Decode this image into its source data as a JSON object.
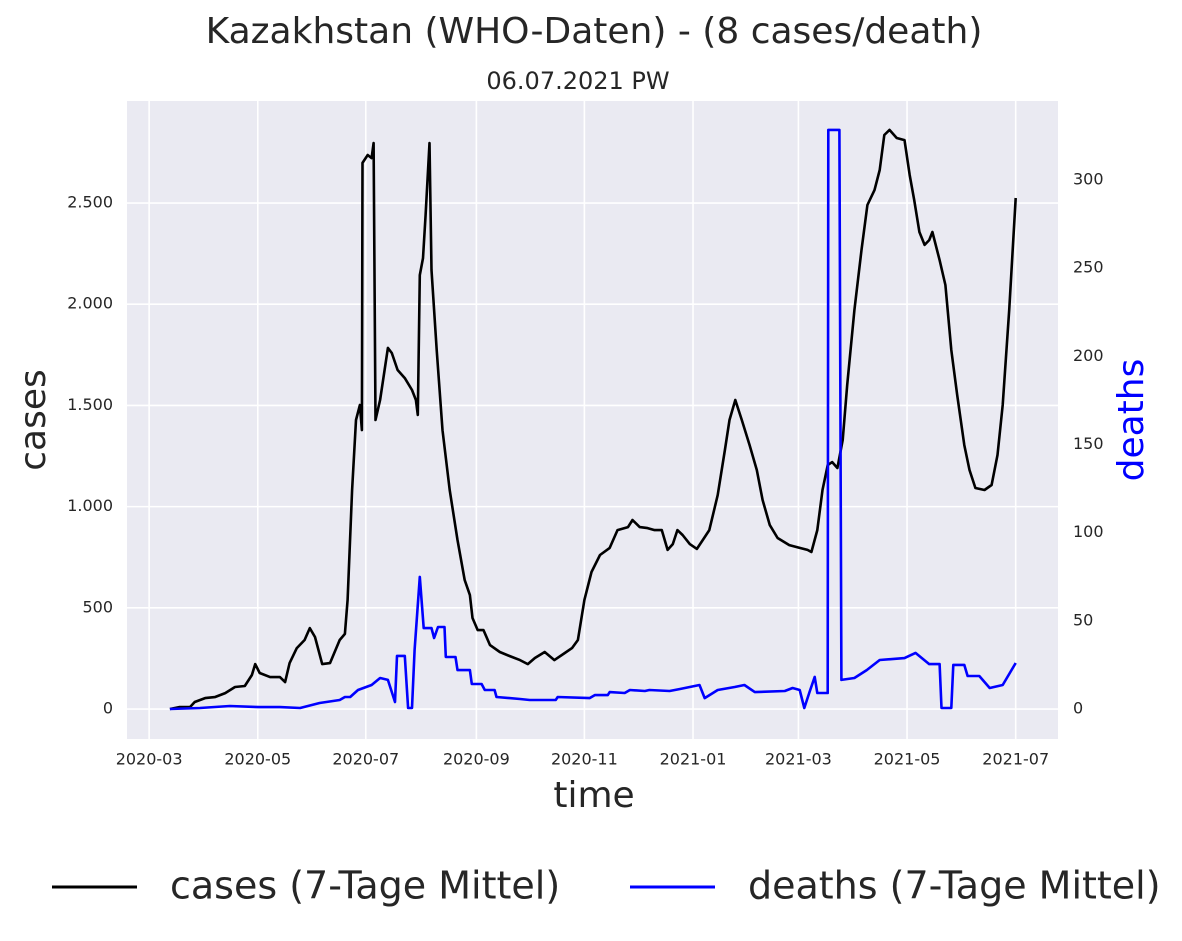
{
  "chart_data": {
    "type": "line",
    "title": "Kazakhstan (WHO-Daten) - (8 cases/death)",
    "subtitle": "06.07.2021 PW",
    "xlabel": "time",
    "ylabel": "cases",
    "y2label": "deaths",
    "xlim": [
      2020.13,
      2021.561
    ],
    "xticks": [
      {
        "value": 2020.164,
        "label": "2020-03"
      },
      {
        "value": 2020.331,
        "label": "2020-05"
      },
      {
        "value": 2020.497,
        "label": "2020-07"
      },
      {
        "value": 2020.667,
        "label": "2020-09"
      },
      {
        "value": 2020.833,
        "label": "2020-11"
      },
      {
        "value": 2021.0,
        "label": "2021-01"
      },
      {
        "value": 2021.162,
        "label": "2021-03"
      },
      {
        "value": 2021.329,
        "label": "2021-05"
      },
      {
        "value": 2021.496,
        "label": "2021-07"
      }
    ],
    "ylim": [
      -148,
      3004
    ],
    "yticks": [
      0,
      500,
      {
        "value": 1000,
        "label": "1.000"
      },
      {
        "value": 1500,
        "label": "1.500"
      },
      {
        "value": 2000,
        "label": "2.000"
      },
      {
        "value": 2500,
        "label": "2.500"
      }
    ],
    "y2lim": [
      -17,
      344.8
    ],
    "y2ticks": [
      0,
      50,
      100,
      150,
      200,
      250,
      300
    ],
    "grid": true,
    "legend": "bottom",
    "series": [
      {
        "name": "cases (7-Tage Mittel)",
        "color": "#000000",
        "x": [
          2020.196,
          2020.211,
          2020.227,
          2020.234,
          2020.25,
          2020.265,
          2020.281,
          2020.296,
          2020.311,
          2020.322,
          2020.327,
          2020.334,
          2020.35,
          2020.365,
          2020.373,
          2020.38,
          2020.391,
          2020.403,
          2020.411,
          2020.419,
          2020.43,
          2020.442,
          2020.457,
          2020.465,
          2020.469,
          2020.476,
          2020.482,
          2020.488,
          2020.491,
          2020.492,
          2020.5,
          2020.506,
          2020.509,
          2020.512,
          2020.519,
          2020.526,
          2020.531,
          2020.537,
          2020.546,
          2020.557,
          2020.568,
          2020.574,
          2020.577,
          2020.58,
          2020.585,
          2020.589,
          2020.595,
          2020.598,
          2020.606,
          2020.615,
          2020.626,
          2020.638,
          2020.649,
          2020.657,
          2020.661,
          2020.669,
          2020.678,
          2020.688,
          2020.703,
          2020.718,
          2020.734,
          2020.746,
          2020.757,
          2020.772,
          2020.787,
          2020.803,
          2020.814,
          2020.823,
          2020.833,
          2020.844,
          2020.857,
          2020.872,
          2020.884,
          2020.9,
          2020.907,
          2020.918,
          2020.93,
          2020.941,
          2020.952,
          2020.961,
          2020.969,
          2020.976,
          2020.984,
          2020.995,
          2021.006,
          2021.015,
          2021.025,
          2021.038,
          2021.049,
          2021.056,
          2021.065,
          2021.075,
          2021.087,
          2021.098,
          2021.107,
          2021.118,
          2021.13,
          2021.148,
          2021.164,
          2021.176,
          2021.182,
          2021.191,
          2021.199,
          2021.207,
          2021.214,
          2021.222,
          2021.23,
          2021.237,
          2021.248,
          2021.259,
          2021.268,
          2021.279,
          2021.287,
          2021.294,
          2021.302,
          2021.313,
          2021.325,
          2021.333,
          2021.34,
          2021.348,
          2021.356,
          2021.363,
          2021.368,
          2021.379,
          2021.388,
          2021.397,
          2021.406,
          2021.417,
          2021.425,
          2021.434,
          2021.448,
          2021.459,
          2021.468,
          2021.476,
          2021.486,
          2021.496
        ],
        "values": [
          0,
          10,
          10,
          35,
          54,
          59,
          79,
          109,
          114,
          168,
          222,
          178,
          158,
          158,
          133,
          227,
          301,
          341,
          400,
          356,
          222,
          227,
          341,
          371,
          539,
          1082,
          1428,
          1502,
          1378,
          2698,
          2737,
          2722,
          2796,
          1428,
          1527,
          1675,
          1784,
          1759,
          1675,
          1635,
          1576,
          1527,
          1453,
          2144,
          2228,
          2441,
          2796,
          2169,
          1774,
          1378,
          1082,
          835,
          637,
          563,
          450,
          390,
          390,
          316,
          282,
          262,
          242,
          222,
          252,
          282,
          242,
          277,
          301,
          341,
          539,
          677,
          761,
          796,
          884,
          899,
          934,
          899,
          894,
          884,
          884,
          786,
          815,
          884,
          860,
          815,
          791,
          835,
          884,
          1057,
          1280,
          1428,
          1527,
          1428,
          1304,
          1181,
          1033,
          909,
          845,
          810,
          796,
          786,
          776,
          884,
          1082,
          1205,
          1220,
          1191,
          1329,
          1601,
          1971,
          2268,
          2490,
          2564,
          2663,
          2836,
          2861,
          2821,
          2811,
          2638,
          2515,
          2357,
          2293,
          2317,
          2357,
          2218,
          2095,
          1774,
          1551,
          1304,
          1181,
          1092,
          1082,
          1107,
          1255,
          1502,
          1971,
          2525
        ]
      },
      {
        "name": "deaths (7-Tage Mittel)",
        "color": "#0000ff",
        "axis": "y2",
        "x": [
          2020.196,
          2020.242,
          2020.288,
          2020.334,
          2020.365,
          2020.396,
          2020.426,
          2020.457,
          2020.465,
          2020.473,
          2020.485,
          2020.506,
          2020.519,
          2020.531,
          2020.542,
          2020.545,
          2020.557,
          2020.562,
          2020.568,
          2020.572,
          2020.58,
          2020.586,
          2020.598,
          2020.602,
          2020.608,
          2020.618,
          2020.62,
          2020.635,
          2020.638,
          2020.657,
          2020.66,
          2020.675,
          2020.68,
          2020.695,
          2020.698,
          2020.734,
          2020.749,
          2020.789,
          2020.792,
          2020.841,
          2020.849,
          2020.869,
          2020.872,
          2020.895,
          2020.903,
          2020.926,
          2020.933,
          2020.964,
          2020.979,
          2021.01,
          2021.018,
          2021.038,
          2021.064,
          2021.079,
          2021.095,
          2021.141,
          2021.153,
          2021.164,
          2021.171,
          2021.179,
          2021.187,
          2021.191,
          2021.207,
          2021.208,
          2021.225,
          2021.228,
          2021.248,
          2021.267,
          2021.287,
          2021.325,
          2021.342,
          2021.363,
          2021.379,
          2021.382,
          2021.397,
          2021.4,
          2021.417,
          2021.422,
          2021.44,
          2021.456,
          2021.476,
          2021.496
        ],
        "values": [
          0,
          0.6,
          1.7,
          1.1,
          1.1,
          0.6,
          3.4,
          5.1,
          6.8,
          6.8,
          10.8,
          13.6,
          17.6,
          16.5,
          4.0,
          30.1,
          30.1,
          0.6,
          0.6,
          33.5,
          74.9,
          45.9,
          45.9,
          40.3,
          46.5,
          46.5,
          29.5,
          29.5,
          22.1,
          22.1,
          14.2,
          14.2,
          10.8,
          10.8,
          6.8,
          5.7,
          5.1,
          5.1,
          6.8,
          6.2,
          7.9,
          7.9,
          9.6,
          9.1,
          10.8,
          10.2,
          10.8,
          10.2,
          11.3,
          13.6,
          6.2,
          10.8,
          12.5,
          13.6,
          9.6,
          10.2,
          11.9,
          10.8,
          0.6,
          9.6,
          18.2,
          9.1,
          9.1,
          328.4,
          328.4,
          16.5,
          17.6,
          22.1,
          27.8,
          28.9,
          31.8,
          25.5,
          25.5,
          0.6,
          0.6,
          25.0,
          25.0,
          18.7,
          18.7,
          11.9,
          13.6,
          26.1
        ]
      }
    ]
  }
}
